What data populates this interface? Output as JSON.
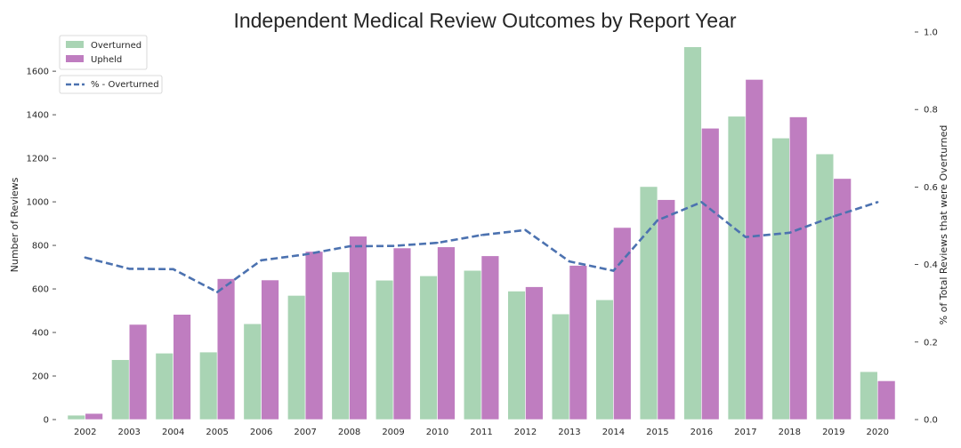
{
  "chart_data": {
    "type": "bar",
    "title": "Independent Medical Review Outcomes by Report Year",
    "xlabel": "",
    "ylabel": "Number of Reviews",
    "ylabel_right": "% of Total Reviews that were Overturned",
    "ylim": [
      0,
      1780
    ],
    "ylim_right": [
      0,
      1.0
    ],
    "yticks": [
      0,
      200,
      400,
      600,
      800,
      1000,
      1200,
      1400,
      1600
    ],
    "yticks_right": [
      "0.0",
      "0.2",
      "0.4",
      "0.6",
      "0.8",
      "1.0"
    ],
    "grid": false,
    "legend_position": "top-left",
    "categories": [
      "2002",
      "2003",
      "2004",
      "2005",
      "2006",
      "2007",
      "2008",
      "2009",
      "2010",
      "2011",
      "2012",
      "2013",
      "2014",
      "2015",
      "2016",
      "2017",
      "2018",
      "2019",
      "2020"
    ],
    "series": [
      {
        "name": "Overturned",
        "kind": "bar",
        "axis": "left",
        "color": "#a9d4b4",
        "values": [
          20,
          275,
          305,
          310,
          440,
          570,
          678,
          640,
          660,
          685,
          590,
          485,
          550,
          1070,
          1712,
          1393,
          1293,
          1220,
          220
        ]
      },
      {
        "name": "Upheld",
        "kind": "bar",
        "axis": "left",
        "color": "#bf7dc0",
        "values": [
          28,
          437,
          483,
          647,
          641,
          772,
          842,
          788,
          793,
          752,
          610,
          708,
          882,
          1010,
          1338,
          1562,
          1390,
          1107,
          178
        ]
      },
      {
        "name": "% - Overturned",
        "kind": "line",
        "axis": "right",
        "style": "dashed",
        "color": "#4c72b0",
        "values": [
          0.418,
          0.389,
          0.388,
          0.329,
          0.411,
          0.426,
          0.447,
          0.448,
          0.456,
          0.476,
          0.489,
          0.408,
          0.384,
          0.514,
          0.561,
          0.471,
          0.482,
          0.524,
          0.561
        ]
      }
    ]
  }
}
